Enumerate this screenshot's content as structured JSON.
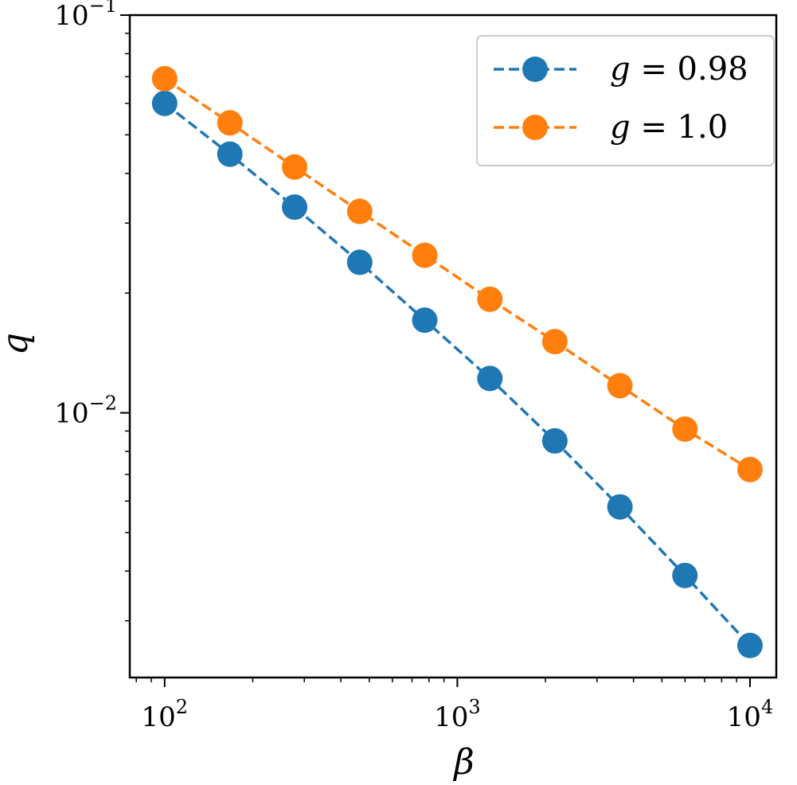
{
  "chart_data": {
    "type": "line",
    "x_scale": "log",
    "y_scale": "log",
    "xlim": [
      76,
      12300
    ],
    "ylim": [
      0.00216,
      0.1
    ],
    "xlabel": "β",
    "ylabel": "q",
    "grid": false,
    "legend_position": "top-right",
    "x_ticks": [
      {
        "value": 100,
        "base": "10",
        "exp": "2"
      },
      {
        "value": 1000,
        "base": "10",
        "exp": "3"
      },
      {
        "value": 10000,
        "base": "10",
        "exp": "4"
      }
    ],
    "y_ticks": [
      {
        "value": 0.01,
        "base": "10",
        "exp": "−2"
      },
      {
        "value": 0.1,
        "base": "10",
        "exp": "−1"
      }
    ],
    "x": [
      100,
      167,
      278,
      464,
      774,
      1292,
      2154,
      3594,
      5995,
      10000
    ],
    "series": [
      {
        "name": "g = 0.98",
        "legend_var": "g",
        "legend_value": "= 0.98",
        "color": "#1f77b4",
        "values": [
          0.06,
          0.0447,
          0.0329,
          0.0239,
          0.0171,
          0.0122,
          0.0085,
          0.0058,
          0.0039,
          0.0026
        ]
      },
      {
        "name": "g = 1.0",
        "legend_var": "g",
        "legend_value": "= 1.0",
        "color": "#ff7f0e",
        "values": [
          0.0692,
          0.0536,
          0.0415,
          0.0321,
          0.0249,
          0.0193,
          0.0151,
          0.0117,
          0.0091,
          0.0072
        ]
      }
    ]
  }
}
